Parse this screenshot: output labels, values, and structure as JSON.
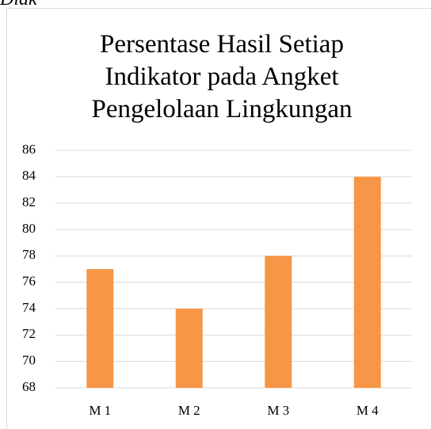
{
  "annotation": "Diak",
  "chart_data": {
    "type": "bar",
    "title": "Persentase Hasil Setiap Indikator pada Angket Pengelolaan Lingkungan",
    "categories": [
      "M 1",
      "M 2",
      "M 3",
      "M 4"
    ],
    "values": [
      77,
      74,
      78,
      84
    ],
    "color": "#f79646",
    "ylim": [
      68,
      86
    ],
    "yticks": [
      68,
      70,
      72,
      74,
      76,
      78,
      80,
      82,
      84,
      86
    ],
    "grid": true
  }
}
